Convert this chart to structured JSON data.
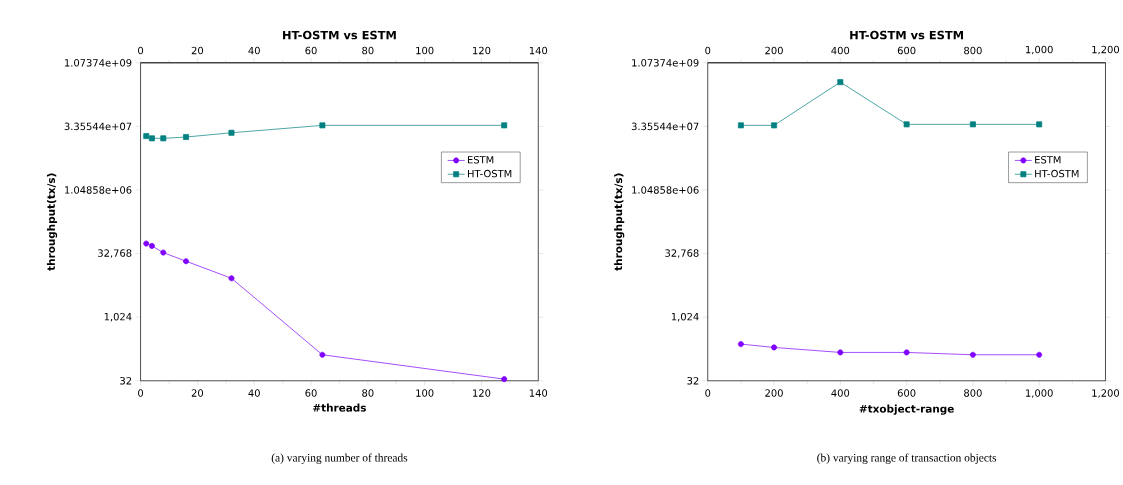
{
  "chart_data": [
    {
      "type": "line",
      "title": "HT-OSTM vs ESTM",
      "xlabel": "#threads",
      "ylabel": "throughput(tx/s)",
      "log": "y",
      "grid": false,
      "legend": "right",
      "x": [
        2,
        4,
        8,
        16,
        32,
        64,
        128
      ],
      "series": [
        {
          "name": "ESTM",
          "color": "#8000ff",
          "marker": "circle",
          "values": [
            56600,
            49700,
            34600,
            21600,
            8540,
            132,
            35
          ]
        },
        {
          "name": "HT-OSTM",
          "color": "#008080",
          "marker": "square",
          "values": [
            19800000,
            17500000,
            17500000,
            18800000,
            23700000,
            35500000,
            35500000
          ]
        }
      ],
      "xlim": [
        0,
        140
      ],
      "xticks": [
        0,
        20,
        40,
        60,
        80,
        100,
        120,
        140
      ],
      "x2lim": [
        0,
        140
      ],
      "x2ticks": [
        0,
        20,
        40,
        60,
        80,
        100,
        120,
        140
      ],
      "ylim": [
        32,
        1073741824
      ],
      "yticks": [
        32,
        {
          "value": 1024,
          "label": "1,024"
        },
        {
          "value": 32768,
          "label": "32,768"
        },
        {
          "value": 1048576,
          "label": "1.04858e+06"
        },
        {
          "value": 33554432,
          "label": "3.35544e+07"
        },
        {
          "value": 1073741824,
          "label": "1.07374e+09"
        }
      ],
      "annotations": [
        "(a) varying number of threads"
      ]
    },
    {
      "type": "line",
      "title": "HT-OSTM vs ESTM",
      "xlabel": "#txobject-range",
      "ylabel": "throughput(tx/s)",
      "log": "y",
      "grid": false,
      "legend": "right",
      "x": [
        100,
        200,
        400,
        600,
        800,
        1000
      ],
      "series": [
        {
          "name": "ESTM",
          "color": "#8000ff",
          "marker": "circle",
          "values": [
            236,
            197,
            150,
            150,
            132,
            132
          ]
        },
        {
          "name": "HT-OSTM",
          "color": "#008080",
          "marker": "square",
          "values": [
            35500000,
            35500000,
            374000000,
            37500000,
            37500000,
            37500000
          ]
        }
      ],
      "xlim": [
        0,
        1200
      ],
      "xticks": [
        0,
        200,
        400,
        600,
        800,
        {
          "value": 1000,
          "label": "1,000"
        },
        {
          "value": 1200,
          "label": "1,200"
        }
      ],
      "x2lim": [
        0,
        1200
      ],
      "x2ticks": [
        0,
        200,
        400,
        600,
        800,
        {
          "value": 1000,
          "label": "1,000"
        },
        {
          "value": 1200,
          "label": "1,200"
        }
      ],
      "ylim": [
        32,
        1073741824
      ],
      "yticks": [
        32,
        {
          "value": 1024,
          "label": "1,024"
        },
        {
          "value": 32768,
          "label": "32,768"
        },
        {
          "value": 1048576,
          "label": "1.04858e+06"
        },
        {
          "value": 33554432,
          "label": "3.35544e+07"
        },
        {
          "value": 1073741824,
          "label": "1.07374e+09"
        }
      ],
      "annotations": [
        "(b) varying range of transaction objects"
      ]
    }
  ]
}
